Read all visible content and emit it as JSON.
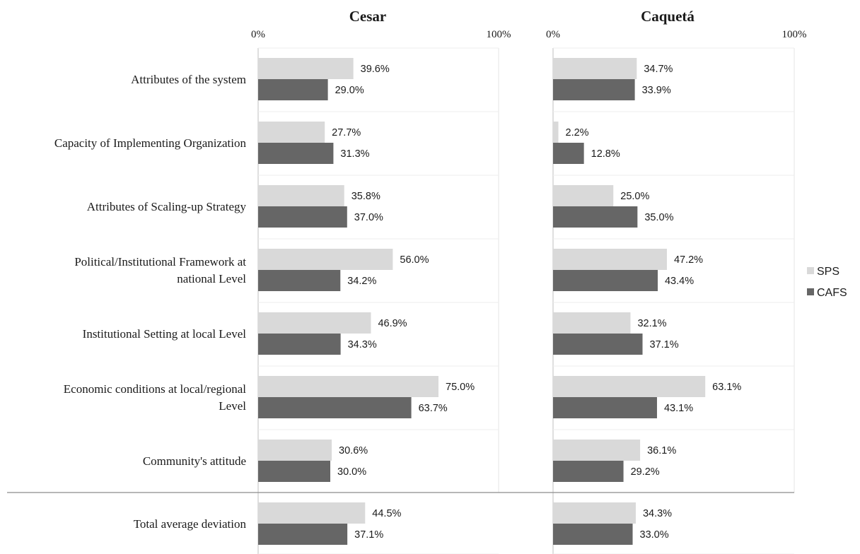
{
  "chart_data": {
    "type": "bar",
    "orientation": "horizontal",
    "x_range": [
      0,
      100
    ],
    "x_tick_labels": [
      "0%",
      "100%"
    ],
    "grid": false,
    "legend_position": "right",
    "categories": [
      "Attributes of the system",
      "Capacity of Implementing Organization",
      "Attributes of Scaling-up Strategy",
      "Political/Institutional Framework at national Level",
      "Institutional Setting at local Level",
      "Economic conditions at local/regional Level",
      "Community's attitude",
      "Total average deviation"
    ],
    "category_lines": [
      [
        "Attributes of the system"
      ],
      [
        "Capacity of Implementing Organization"
      ],
      [
        "Attributes of Scaling-up Strategy"
      ],
      [
        "Political/Institutional Framework at",
        "national Level"
      ],
      [
        "Institutional Setting at local Level"
      ],
      [
        "Economic conditions at local/regional",
        "Level"
      ],
      [
        "Community's attitude"
      ],
      [
        "Total average deviation"
      ]
    ],
    "legend": [
      {
        "name": "SPS",
        "color": "#d9d9d9"
      },
      {
        "name": "CAFS",
        "color": "#666666"
      }
    ],
    "panels": [
      {
        "title": "Cesar",
        "series": [
          {
            "name": "SPS",
            "color": "#d9d9d9",
            "values": [
              39.6,
              27.7,
              35.8,
              56.0,
              46.9,
              75.0,
              30.6,
              44.5
            ]
          },
          {
            "name": "CAFS",
            "color": "#666666",
            "values": [
              29.0,
              31.3,
              37.0,
              34.2,
              34.3,
              63.7,
              30.0,
              37.1
            ]
          }
        ]
      },
      {
        "title": "Caquetá",
        "series": [
          {
            "name": "SPS",
            "color": "#d9d9d9",
            "values": [
              34.7,
              2.2,
              25.0,
              47.2,
              32.1,
              63.1,
              36.1,
              34.3
            ]
          },
          {
            "name": "CAFS",
            "color": "#666666",
            "values": [
              33.9,
              12.8,
              35.0,
              43.4,
              37.1,
              43.1,
              29.2,
              33.0
            ]
          }
        ]
      }
    ]
  }
}
